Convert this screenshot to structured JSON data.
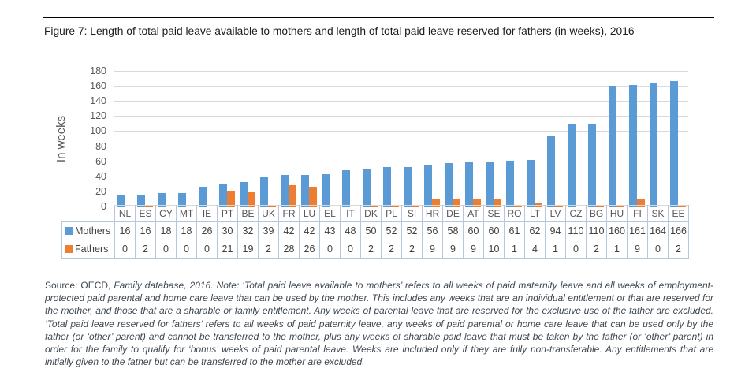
{
  "title": "Figure 7: Length of total paid leave available to mothers and length of total paid leave reserved for fathers (in weeks), 2016",
  "chart_data": {
    "type": "bar",
    "title": "Length of total paid leave available to mothers and length of total paid leave reserved for fathers (in weeks), 2016",
    "xlabel": "",
    "ylabel": "In weeks",
    "ylim": [
      0,
      180
    ],
    "ytick_step": 20,
    "grid": true,
    "legend_position": "data-table-left",
    "categories": [
      "NL",
      "ES",
      "CY",
      "MT",
      "IE",
      "PT",
      "BE",
      "UK",
      "FR",
      "LU",
      "EL",
      "IT",
      "DK",
      "PL",
      "SI",
      "HR",
      "DE",
      "AT",
      "SE",
      "RO",
      "LT",
      "LV",
      "CZ",
      "BG",
      "HU",
      "FI",
      "SK",
      "EE"
    ],
    "series": [
      {
        "name": "Mothers",
        "color": "#5B9BD5",
        "values": [
          16,
          16,
          18,
          18,
          26,
          30,
          32,
          39,
          42,
          42,
          43,
          48,
          50,
          52,
          52,
          56,
          58,
          60,
          60,
          61,
          62,
          94,
          110,
          110,
          160,
          161,
          164,
          166
        ]
      },
      {
        "name": "Fathers",
        "color": "#ED7D31",
        "values": [
          0,
          2,
          0,
          0,
          0,
          21,
          19,
          2,
          28,
          26,
          0,
          0,
          2,
          2,
          2,
          9,
          9,
          9,
          10,
          1,
          4,
          1,
          0,
          2,
          1,
          9,
          0,
          2
        ]
      }
    ]
  },
  "note": {
    "parts": [
      {
        "text": "Source:",
        "italic": false
      },
      {
        "text": " OECD, ",
        "italic": false
      },
      {
        "text": "Family database, 2016.",
        "italic": true
      },
      {
        "text": " Note: ‘Total paid leave available to mothers’ refers to all weeks of paid maternity leave and all weeks of employment-protected paid parental and home care leave that can be used by the mother. This includes any weeks that are an individual entitlement or that are reserved for the mother, and those that are a sharable or family entitlement. Any weeks of parental leave that are reserved for the exclusive use of the father are excluded. ‘Total paid leave reserved for fathers’ refers to all weeks of paid paternity leave, any weeks of paid parental or home care leave that can be used only by the father (or ‘other’ parent) and cannot be transferred to the mother, plus any weeks of sharable paid leave that must be taken by the father (or ‘other’ parent) in order for the family to qualify for ‘bonus’ weeks of paid parental leave. Weeks are included only if they are fully non-transferable. Any entitlements that are initially given to the father but can be transferred to the mother are excluded.",
        "italic": true
      }
    ]
  },
  "colors": {
    "mothers": "#5B9BD5",
    "fathers": "#ED7D31",
    "gridline": "#D9D9D9",
    "table_border": "#B7C7DB",
    "axis_text": "#595959",
    "table_text": "#404040",
    "note_text": "#3E4852",
    "rule": "#000000"
  }
}
